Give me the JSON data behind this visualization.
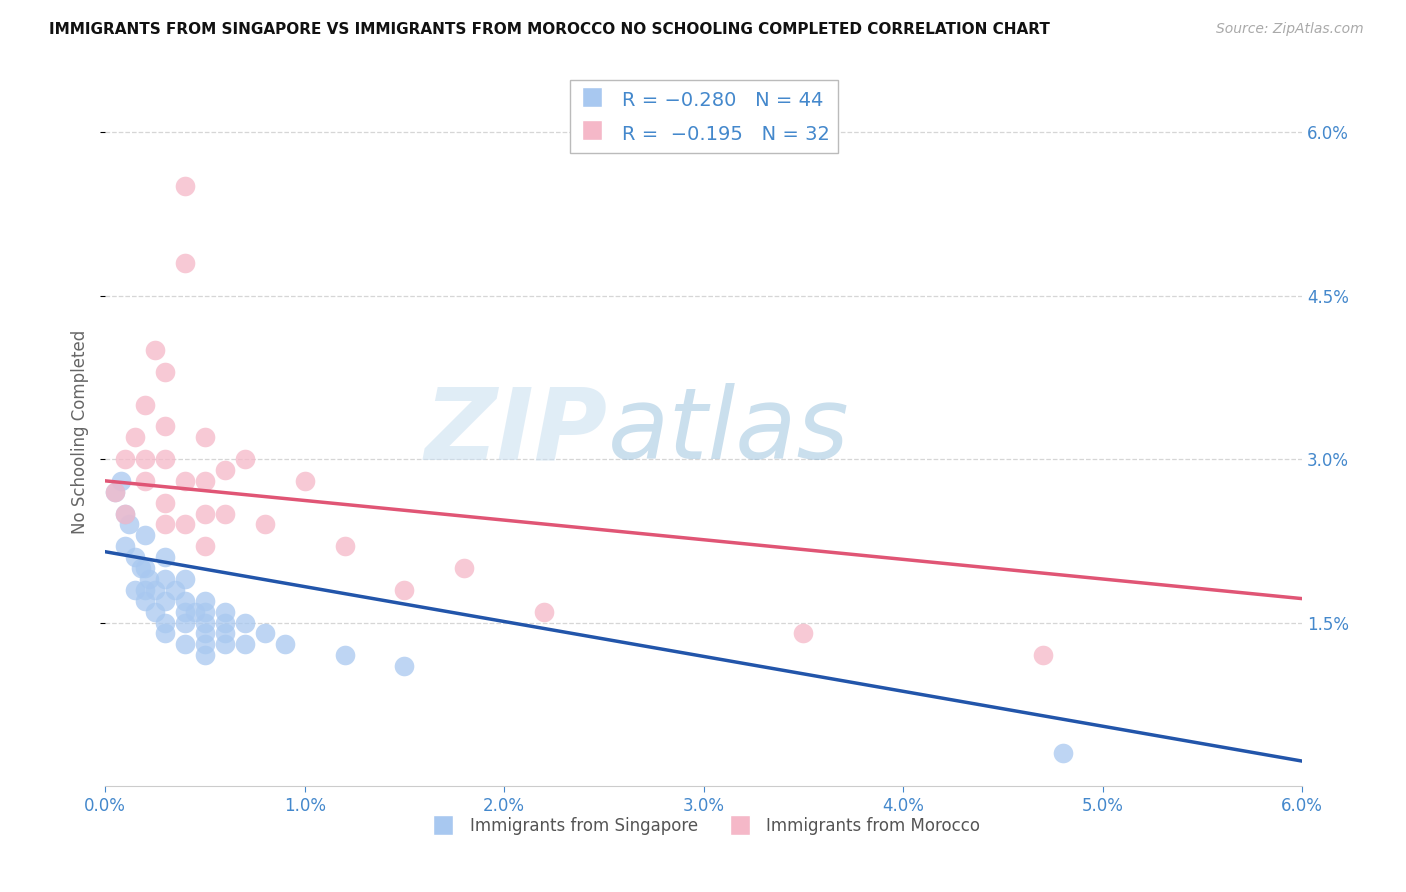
{
  "title": "IMMIGRANTS FROM SINGAPORE VS IMMIGRANTS FROM MOROCCO NO SCHOOLING COMPLETED CORRELATION CHART",
  "source": "Source: ZipAtlas.com",
  "ylabel": "No Schooling Completed",
  "x_min": 0.0,
  "x_max": 0.06,
  "y_min": 0.0,
  "y_max": 0.065,
  "x_ticks": [
    0.0,
    0.01,
    0.02,
    0.03,
    0.04,
    0.05,
    0.06
  ],
  "y_ticks_right": [
    0.015,
    0.03,
    0.045,
    0.06
  ],
  "singapore_color": "#a8c8f0",
  "morocco_color": "#f5b8c8",
  "singapore_line_color": "#2255aa",
  "morocco_line_color": "#e05575",
  "watermark_zip": "ZIP",
  "watermark_atlas": "atlas",
  "background_color": "#ffffff",
  "grid_color": "#cccccc",
  "title_color": "#222222",
  "axis_color": "#4488cc",
  "sg_intercept": 0.0215,
  "sg_slope": -0.32,
  "mo_intercept": 0.028,
  "mo_slope": -0.18,
  "singapore_scatter": [
    [
      0.0005,
      0.027
    ],
    [
      0.0008,
      0.028
    ],
    [
      0.001,
      0.022
    ],
    [
      0.001,
      0.025
    ],
    [
      0.0012,
      0.024
    ],
    [
      0.0015,
      0.021
    ],
    [
      0.0015,
      0.018
    ],
    [
      0.0018,
      0.02
    ],
    [
      0.002,
      0.023
    ],
    [
      0.002,
      0.02
    ],
    [
      0.002,
      0.018
    ],
    [
      0.002,
      0.017
    ],
    [
      0.0022,
      0.019
    ],
    [
      0.0025,
      0.018
    ],
    [
      0.0025,
      0.016
    ],
    [
      0.003,
      0.021
    ],
    [
      0.003,
      0.019
    ],
    [
      0.003,
      0.017
    ],
    [
      0.003,
      0.015
    ],
    [
      0.003,
      0.014
    ],
    [
      0.0035,
      0.018
    ],
    [
      0.004,
      0.019
    ],
    [
      0.004,
      0.017
    ],
    [
      0.004,
      0.016
    ],
    [
      0.004,
      0.015
    ],
    [
      0.004,
      0.013
    ],
    [
      0.0045,
      0.016
    ],
    [
      0.005,
      0.017
    ],
    [
      0.005,
      0.016
    ],
    [
      0.005,
      0.015
    ],
    [
      0.005,
      0.014
    ],
    [
      0.005,
      0.013
    ],
    [
      0.005,
      0.012
    ],
    [
      0.006,
      0.016
    ],
    [
      0.006,
      0.015
    ],
    [
      0.006,
      0.014
    ],
    [
      0.006,
      0.013
    ],
    [
      0.007,
      0.015
    ],
    [
      0.007,
      0.013
    ],
    [
      0.008,
      0.014
    ],
    [
      0.009,
      0.013
    ],
    [
      0.012,
      0.012
    ],
    [
      0.015,
      0.011
    ],
    [
      0.048,
      0.003
    ]
  ],
  "morocco_scatter": [
    [
      0.0005,
      0.027
    ],
    [
      0.001,
      0.03
    ],
    [
      0.001,
      0.025
    ],
    [
      0.0015,
      0.032
    ],
    [
      0.002,
      0.035
    ],
    [
      0.002,
      0.03
    ],
    [
      0.002,
      0.028
    ],
    [
      0.0025,
      0.04
    ],
    [
      0.003,
      0.038
    ],
    [
      0.003,
      0.033
    ],
    [
      0.003,
      0.03
    ],
    [
      0.003,
      0.026
    ],
    [
      0.003,
      0.024
    ],
    [
      0.004,
      0.028
    ],
    [
      0.004,
      0.024
    ],
    [
      0.004,
      0.055
    ],
    [
      0.004,
      0.048
    ],
    [
      0.005,
      0.032
    ],
    [
      0.005,
      0.028
    ],
    [
      0.005,
      0.025
    ],
    [
      0.005,
      0.022
    ],
    [
      0.006,
      0.029
    ],
    [
      0.006,
      0.025
    ],
    [
      0.007,
      0.03
    ],
    [
      0.008,
      0.024
    ],
    [
      0.01,
      0.028
    ],
    [
      0.012,
      0.022
    ],
    [
      0.015,
      0.018
    ],
    [
      0.018,
      0.02
    ],
    [
      0.022,
      0.016
    ],
    [
      0.035,
      0.014
    ],
    [
      0.047,
      0.012
    ]
  ]
}
